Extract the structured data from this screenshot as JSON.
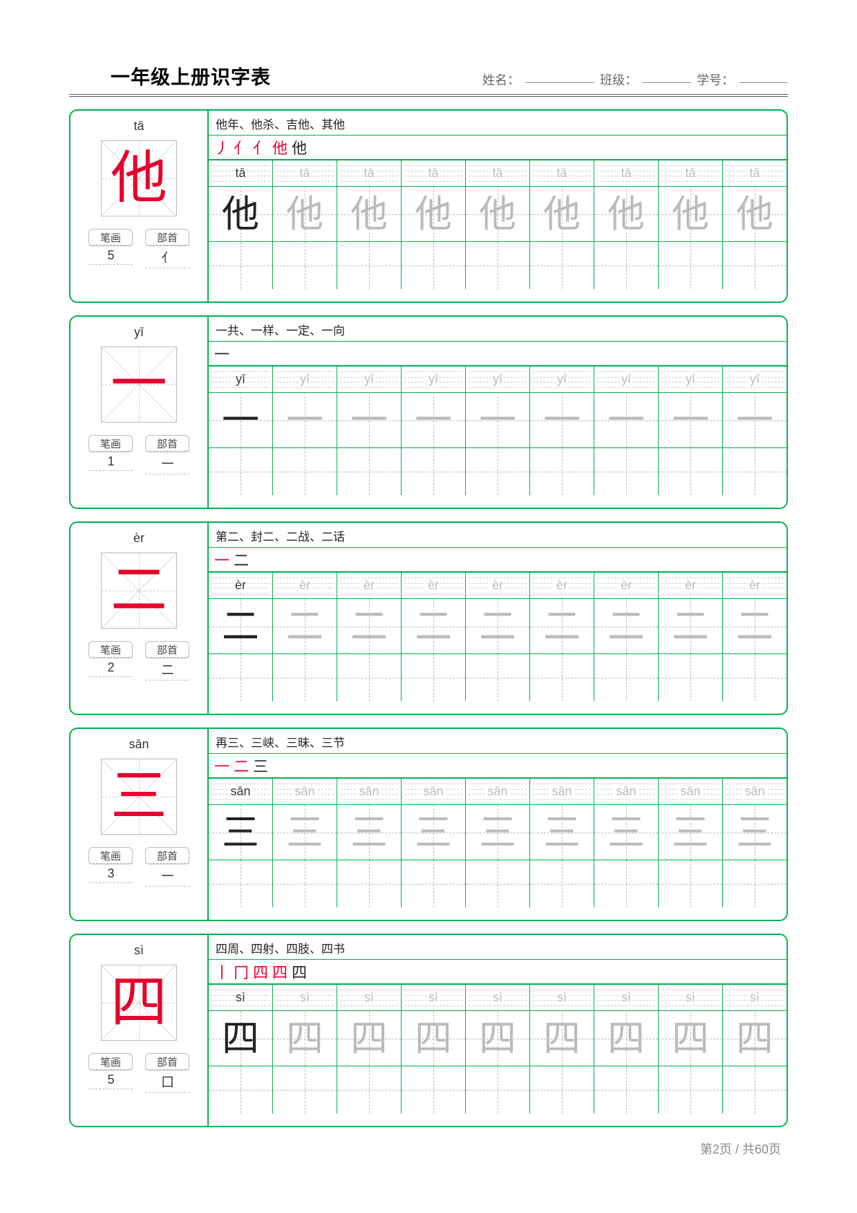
{
  "header": {
    "title": "一年级上册识字表",
    "name_label": "姓名：",
    "class_label": "班级：",
    "id_label": "学号："
  },
  "labels": {
    "strokes": "笔画",
    "radical": "部首"
  },
  "colors": {
    "border_green": "#00b04f",
    "accent_red": "#e6002d",
    "gray_trace": "#bbbbbb",
    "text": "#222222"
  },
  "grid": {
    "columns": 9,
    "trace_repeat": 8
  },
  "characters": [
    {
      "pinyin": "tā",
      "char": "他",
      "strokes": "5",
      "radical": "亻",
      "words": "他年、他杀、吉他、其他",
      "stroke_seq": [
        "丿",
        "亻",
        "亻",
        "他",
        "他"
      ],
      "last_black": true
    },
    {
      "pinyin": "yī",
      "char": "一",
      "strokes": "1",
      "radical": "一",
      "words": "一共、一样、一定、一向",
      "stroke_seq": [
        "一"
      ],
      "last_black": true
    },
    {
      "pinyin": "èr",
      "char": "二",
      "strokes": "2",
      "radical": "二",
      "words": "第二、封二、二战、二话",
      "stroke_seq": [
        "一",
        "二"
      ],
      "last_black": true
    },
    {
      "pinyin": "sān",
      "char": "三",
      "strokes": "3",
      "radical": "一",
      "words": "再三、三峡、三昧、三节",
      "stroke_seq": [
        "一",
        "二",
        "三"
      ],
      "last_black": true
    },
    {
      "pinyin": "sì",
      "char": "四",
      "strokes": "5",
      "radical": "囗",
      "words": "四周、四射、四肢、四书",
      "stroke_seq": [
        "丨",
        "冂",
        "四",
        "四",
        "四"
      ],
      "last_black": true
    }
  ],
  "footer": {
    "page_label": "第2页 / 共60页"
  }
}
